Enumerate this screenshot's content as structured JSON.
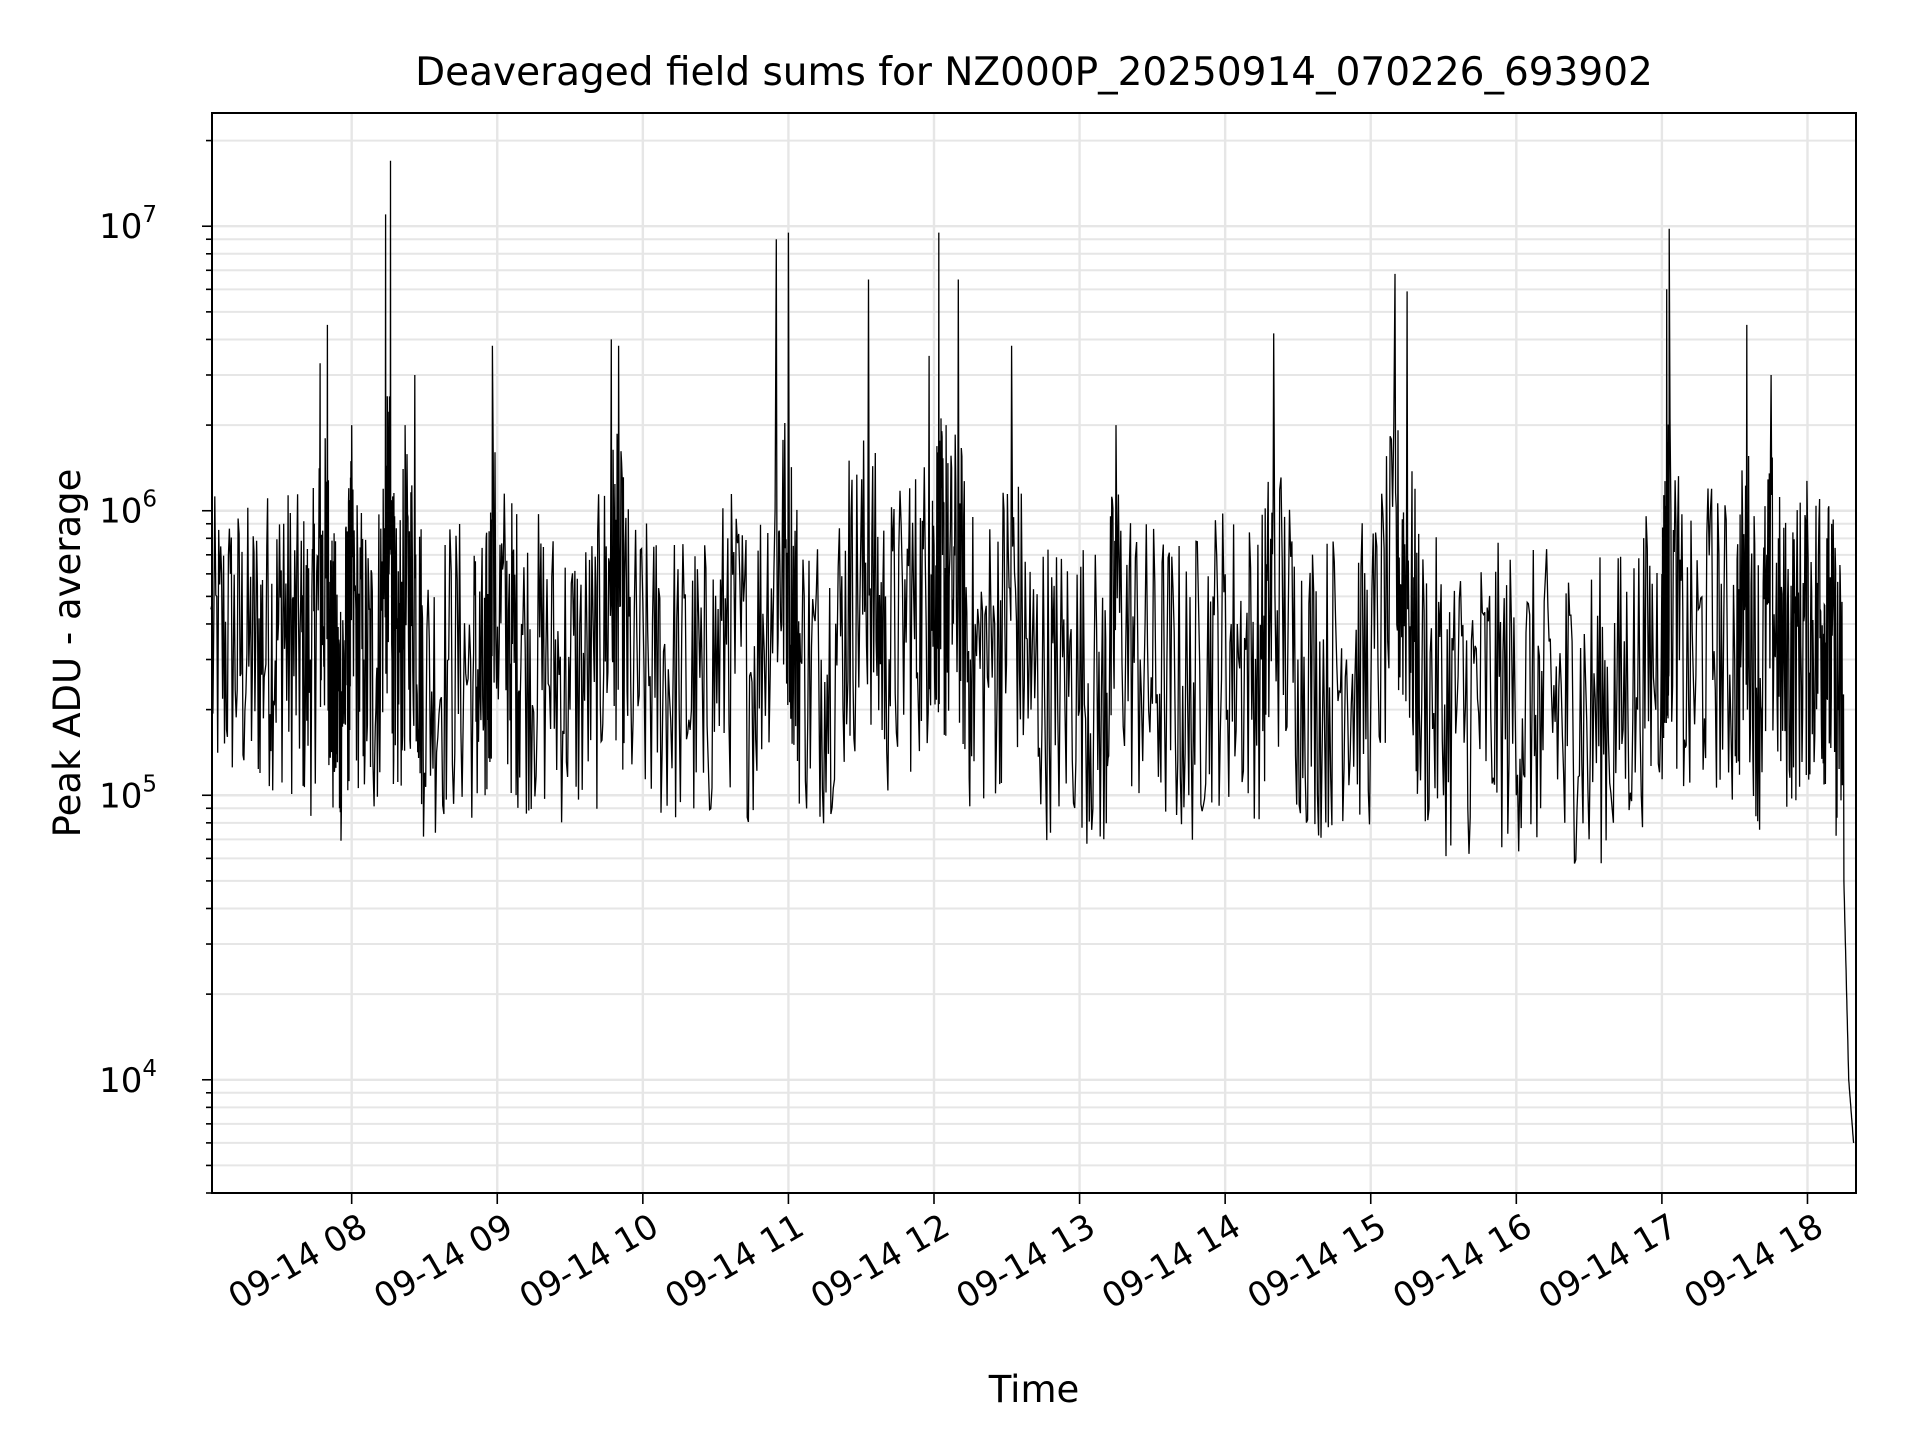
{
  "chart_data": {
    "type": "line",
    "title": "Deaveraged field sums for NZ000P_20250914_070226_693902",
    "xlabel": "Time",
    "ylabel": "Peak ADU - average",
    "x_axis": {
      "kind": "time",
      "range": [
        "2025-09-14T07:02:26",
        "2025-09-14T18:20:00"
      ],
      "tick_labels": [
        "09-14 08",
        "09-14 09",
        "09-14 10",
        "09-14 11",
        "09-14 12",
        "09-14 13",
        "09-14 14",
        "09-14 15",
        "09-14 16",
        "09-14 17",
        "09-14 18"
      ],
      "tick_times": [
        "2025-09-14T08:00",
        "2025-09-14T09:00",
        "2025-09-14T10:00",
        "2025-09-14T11:00",
        "2025-09-14T12:00",
        "2025-09-14T13:00",
        "2025-09-14T14:00",
        "2025-09-14T15:00",
        "2025-09-14T16:00",
        "2025-09-14T17:00",
        "2025-09-14T18:00"
      ]
    },
    "y_axis": {
      "scale": "log",
      "range": [
        4000,
        25000000
      ],
      "tick_values": [
        10000,
        100000,
        1000000,
        10000000
      ],
      "tick_labels": [
        {
          "base": "10",
          "exp": "4"
        },
        {
          "base": "10",
          "exp": "5"
        },
        {
          "base": "10",
          "exp": "6"
        },
        {
          "base": "10",
          "exp": "7"
        }
      ]
    },
    "grid": "on (major and minor)",
    "series": [
      {
        "color": "#000000",
        "points": [
          [
            "07:02",
            450000
          ],
          [
            "07:10",
            600000
          ],
          [
            "07:18",
            400000
          ],
          [
            "07:25",
            750000
          ],
          [
            "07:32",
            900000
          ],
          [
            "07:38",
            500000
          ],
          [
            "07:43",
            300000
          ],
          [
            "07:47",
            3300000
          ],
          [
            "07:50",
            4500000
          ],
          [
            "07:52",
            200000
          ],
          [
            "07:55",
            90000
          ],
          [
            "07:58",
            400000
          ],
          [
            "08:00",
            2000000
          ],
          [
            "08:05",
            300000
          ],
          [
            "08:10",
            200000
          ],
          [
            "08:14",
            11000000
          ],
          [
            "08:16",
            17000000
          ],
          [
            "08:18",
            150000
          ],
          [
            "08:22",
            2000000
          ],
          [
            "08:26",
            3000000
          ],
          [
            "08:30",
            120000
          ],
          [
            "08:40",
            300000
          ],
          [
            "08:50",
            250000
          ],
          [
            "08:55",
            100000
          ],
          [
            "08:58",
            3800000
          ],
          [
            "09:05",
            600000
          ],
          [
            "09:10",
            400000
          ],
          [
            "09:20",
            300000
          ],
          [
            "09:30",
            200000
          ],
          [
            "09:40",
            250000
          ],
          [
            "09:47",
            4000000
          ],
          [
            "09:50",
            3800000
          ],
          [
            "09:55",
            250000
          ],
          [
            "10:05",
            220000
          ],
          [
            "10:15",
            200000
          ],
          [
            "10:25",
            120000
          ],
          [
            "10:35",
            800000
          ],
          [
            "10:45",
            250000
          ],
          [
            "10:55",
            9000000
          ],
          [
            "11:00",
            9500000
          ],
          [
            "11:05",
            300000
          ],
          [
            "11:15",
            250000
          ],
          [
            "11:25",
            1500000
          ],
          [
            "11:33",
            6500000
          ],
          [
            "11:40",
            500000
          ],
          [
            "11:50",
            1200000
          ],
          [
            "11:58",
            3500000
          ],
          [
            "12:02",
            9500000
          ],
          [
            "12:05",
            2000000
          ],
          [
            "12:10",
            6500000
          ],
          [
            "12:15",
            300000
          ],
          [
            "12:25",
            400000
          ],
          [
            "12:32",
            3800000
          ],
          [
            "12:40",
            200000
          ],
          [
            "12:50",
            150000
          ],
          [
            "13:00",
            200000
          ],
          [
            "13:10",
            70000
          ],
          [
            "13:15",
            2000000
          ],
          [
            "13:25",
            300000
          ],
          [
            "13:35",
            200000
          ],
          [
            "13:45",
            100000
          ],
          [
            "13:55",
            500000
          ],
          [
            "14:05",
            400000
          ],
          [
            "14:15",
            300000
          ],
          [
            "14:20",
            4200000
          ],
          [
            "14:30",
            300000
          ],
          [
            "14:40",
            150000
          ],
          [
            "14:50",
            300000
          ],
          [
            "15:00",
            200000
          ],
          [
            "15:10",
            6800000
          ],
          [
            "15:15",
            5900000
          ],
          [
            "15:20",
            200000
          ],
          [
            "15:30",
            100000
          ],
          [
            "15:40",
            90000
          ],
          [
            "15:50",
            110000
          ],
          [
            "16:00",
            100000
          ],
          [
            "16:10",
            90000
          ],
          [
            "16:20",
            80000
          ],
          [
            "16:30",
            70000
          ],
          [
            "16:40",
            80000
          ],
          [
            "16:50",
            200000
          ],
          [
            "17:00",
            600000
          ],
          [
            "17:02",
            6000000
          ],
          [
            "17:03",
            9800000
          ],
          [
            "17:10",
            150000
          ],
          [
            "17:20",
            1000000
          ],
          [
            "17:30",
            300000
          ],
          [
            "17:35",
            4500000
          ],
          [
            "17:40",
            150000
          ],
          [
            "17:45",
            3000000
          ],
          [
            "17:50",
            300000
          ],
          [
            "17:55",
            500000
          ],
          [
            "18:00",
            900000
          ],
          [
            "18:05",
            1100000
          ],
          [
            "18:08",
            800000
          ],
          [
            "18:12",
            150000
          ],
          [
            "18:15",
            50000
          ],
          [
            "18:17",
            10000
          ],
          [
            "18:19",
            6000
          ]
        ]
      }
    ]
  }
}
